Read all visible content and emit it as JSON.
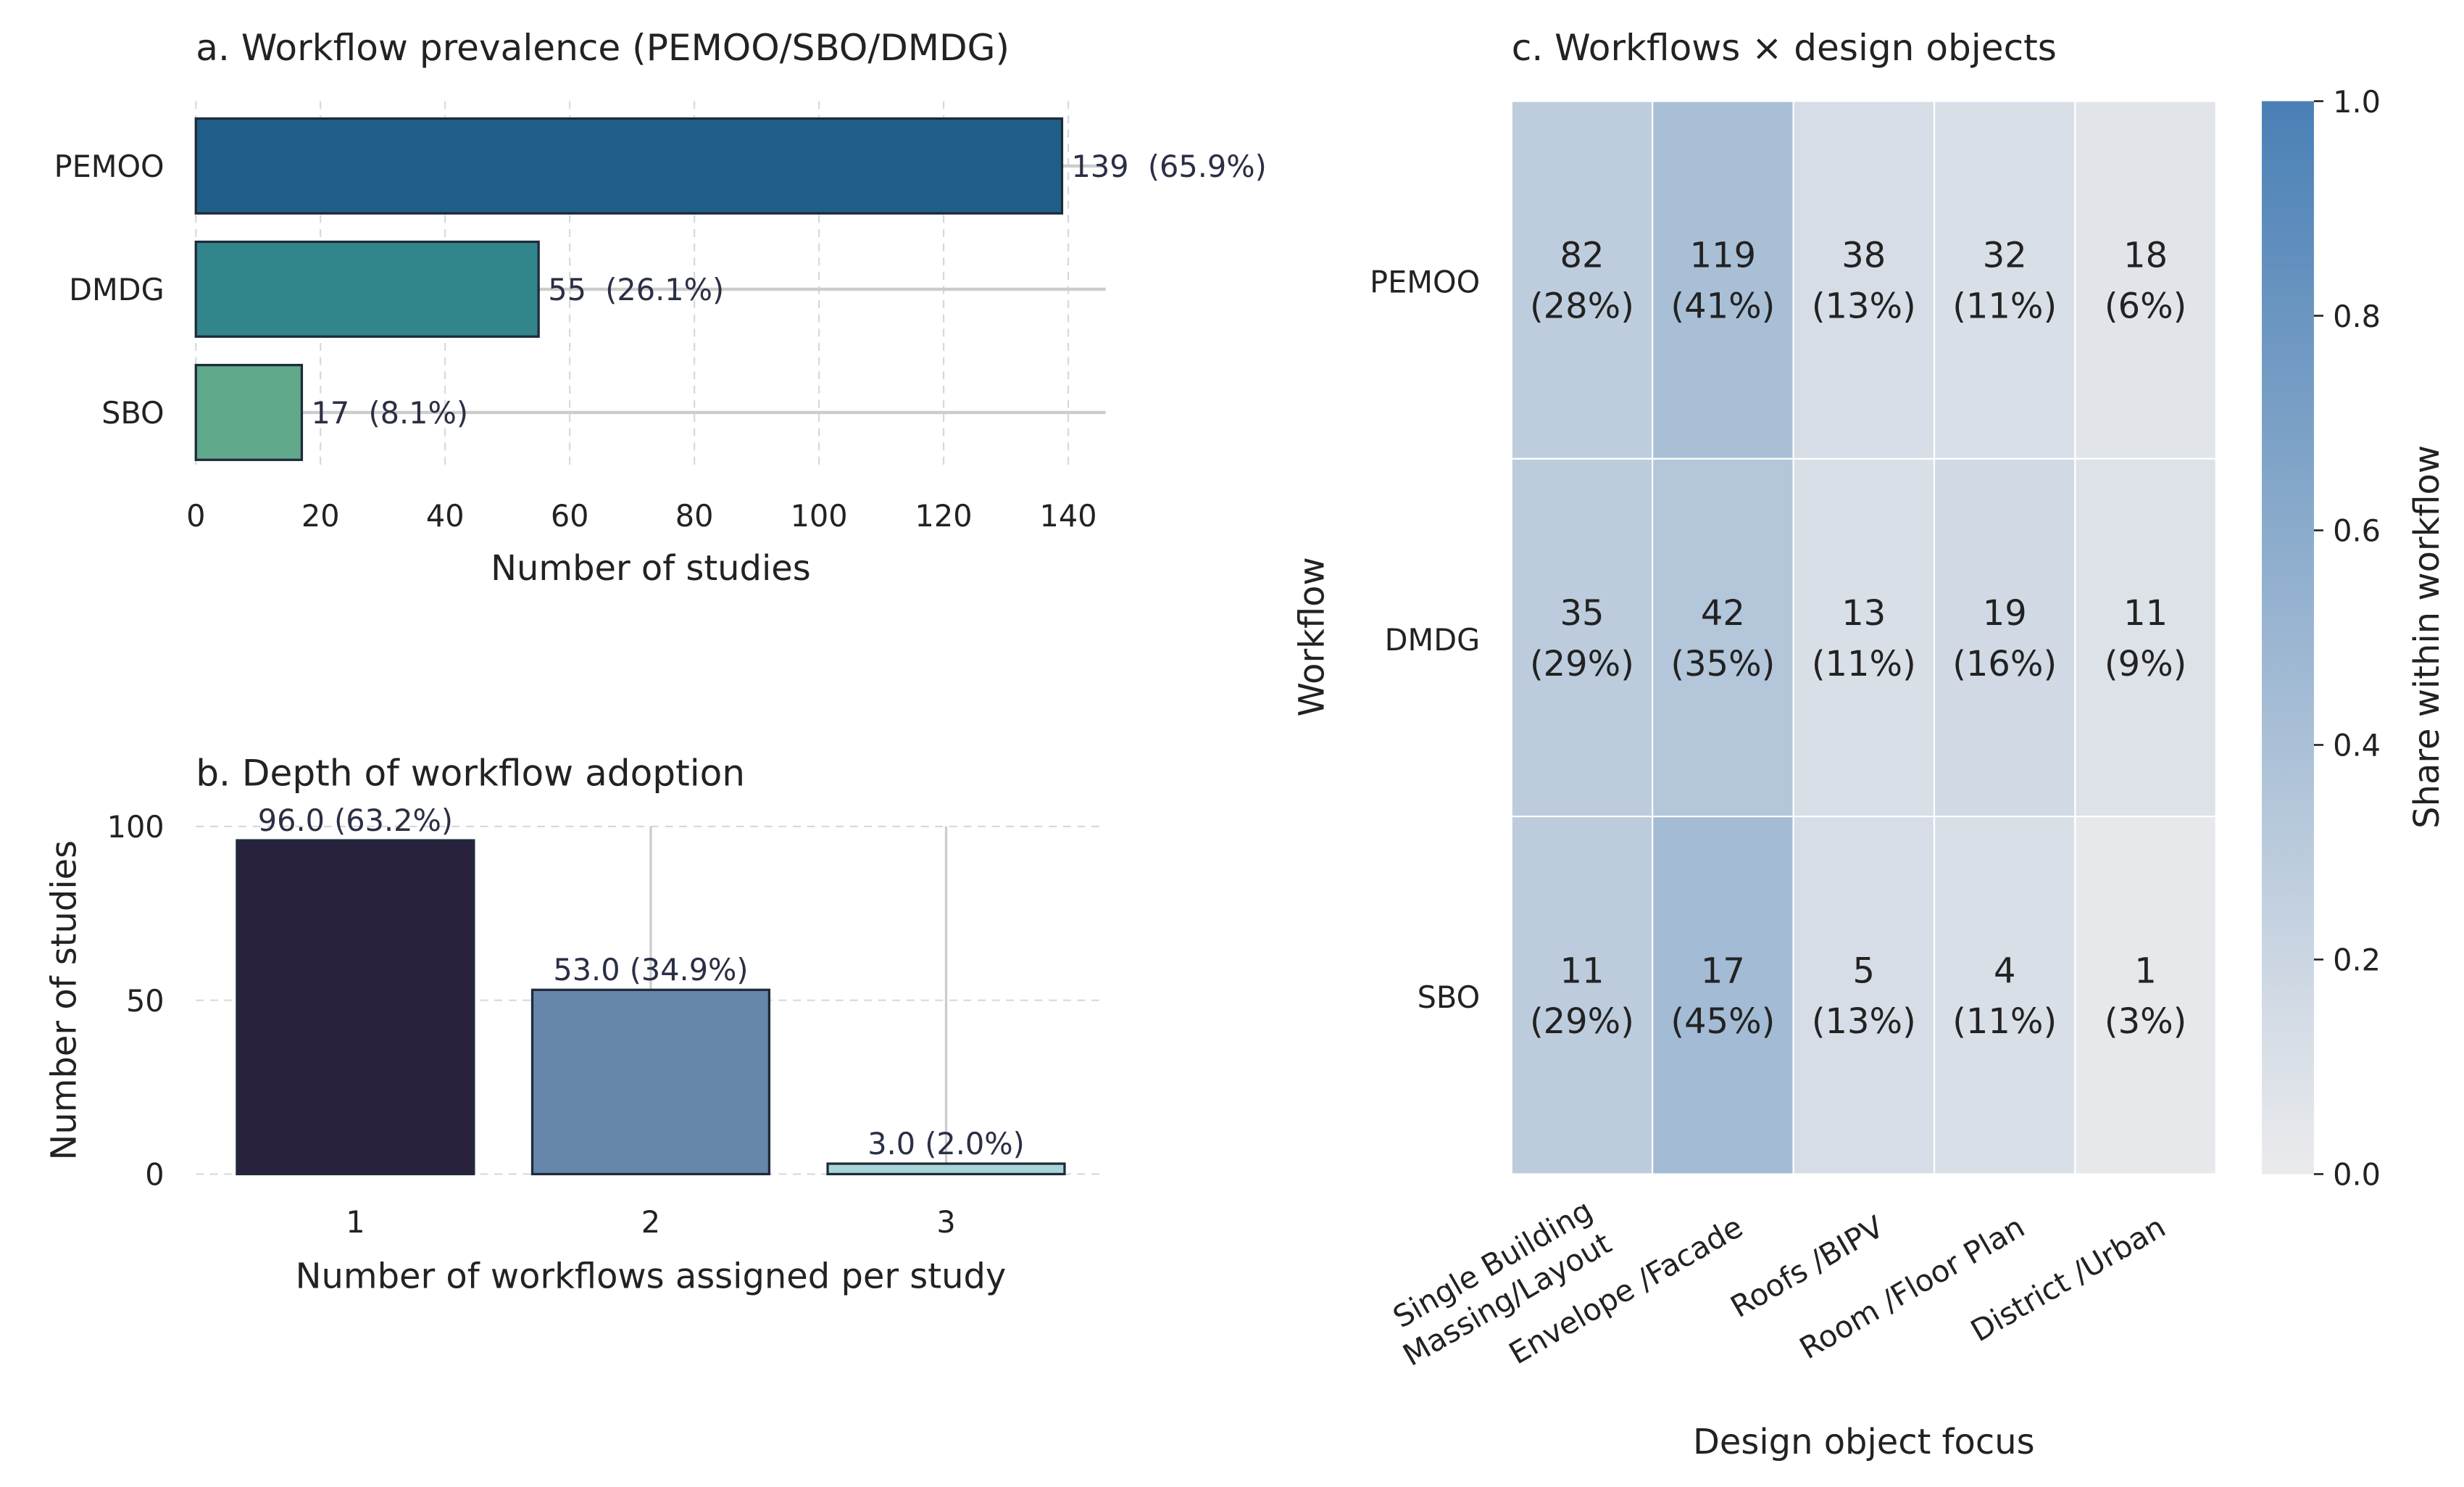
{
  "chart_data": [
    {
      "type": "bar",
      "orientation": "horizontal",
      "title": "a. Workflow prevalence (PEMOO/SBO/DMDG)",
      "categories": [
        "PEMOO",
        "DMDG",
        "SBO"
      ],
      "values": [
        139,
        55,
        17
      ],
      "data_labels": [
        "139  (65.9%)",
        "55  (26.1%)",
        "17  (8.1%)"
      ],
      "colors": [
        "#1f5f87",
        "#32858a",
        "#60a98b"
      ],
      "xlabel": "Number of studies",
      "ylabel": "",
      "xticks": [
        0,
        20,
        40,
        60,
        80,
        100,
        120,
        140
      ],
      "xlim": [
        0,
        146
      ],
      "grid": "x dashed"
    },
    {
      "type": "bar",
      "title": "b. Depth of workflow adoption",
      "categories": [
        "1",
        "2",
        "3"
      ],
      "values": [
        96,
        53,
        3
      ],
      "data_labels": [
        "96.0 (63.2%)",
        "53.0 (34.9%)",
        "3.0 (2.0%)"
      ],
      "colors": [
        "#29223f",
        "#6686ab",
        "#a9d4d8"
      ],
      "xlabel": "Number of workflows assigned per study",
      "ylabel": "Number of studies",
      "yticks": [
        0,
        50,
        100
      ],
      "ylim": [
        0,
        105
      ],
      "grid": "y dashed"
    },
    {
      "type": "heatmap",
      "title": "c. Workflows × design objects",
      "rows": [
        "PEMOO",
        "DMDG",
        "SBO"
      ],
      "columns": [
        "Single Building\nMassing/Layout",
        "Envelope /Facade",
        "Roofs /BIPV",
        "Room /Floor Plan",
        "District /Urban"
      ],
      "column_lines": [
        [
          "Single Building",
          "Massing/Layout"
        ],
        [
          "Envelope /Facade"
        ],
        [
          "Roofs /BIPV"
        ],
        [
          "Room /Floor Plan"
        ],
        [
          "District /Urban"
        ]
      ],
      "counts": [
        [
          82,
          119,
          38,
          32,
          18
        ],
        [
          35,
          42,
          13,
          19,
          11
        ],
        [
          11,
          17,
          5,
          4,
          1
        ]
      ],
      "pct_labels": [
        [
          "(28%)",
          "(41%)",
          "(13%)",
          "(11%)",
          "(6%)"
        ],
        [
          "(29%)",
          "(35%)",
          "(11%)",
          "(16%)",
          "(9%)"
        ],
        [
          "(29%)",
          "(45%)",
          "(13%)",
          "(11%)",
          "(3%)"
        ]
      ],
      "shares": [
        [
          0.28,
          0.41,
          0.13,
          0.11,
          0.06
        ],
        [
          0.29,
          0.35,
          0.11,
          0.16,
          0.09
        ],
        [
          0.29,
          0.45,
          0.13,
          0.11,
          0.03
        ]
      ],
      "xlabel": "Design object focus",
      "ylabel": "Workflow",
      "colorbar": {
        "label": "Share within workflow",
        "ticks": [
          "0.0",
          "0.2",
          "0.4",
          "0.6",
          "0.8",
          "1.0"
        ],
        "range": [
          0,
          1
        ],
        "color_low": "#ebebed",
        "color_high": "#4a80b6"
      }
    }
  ]
}
